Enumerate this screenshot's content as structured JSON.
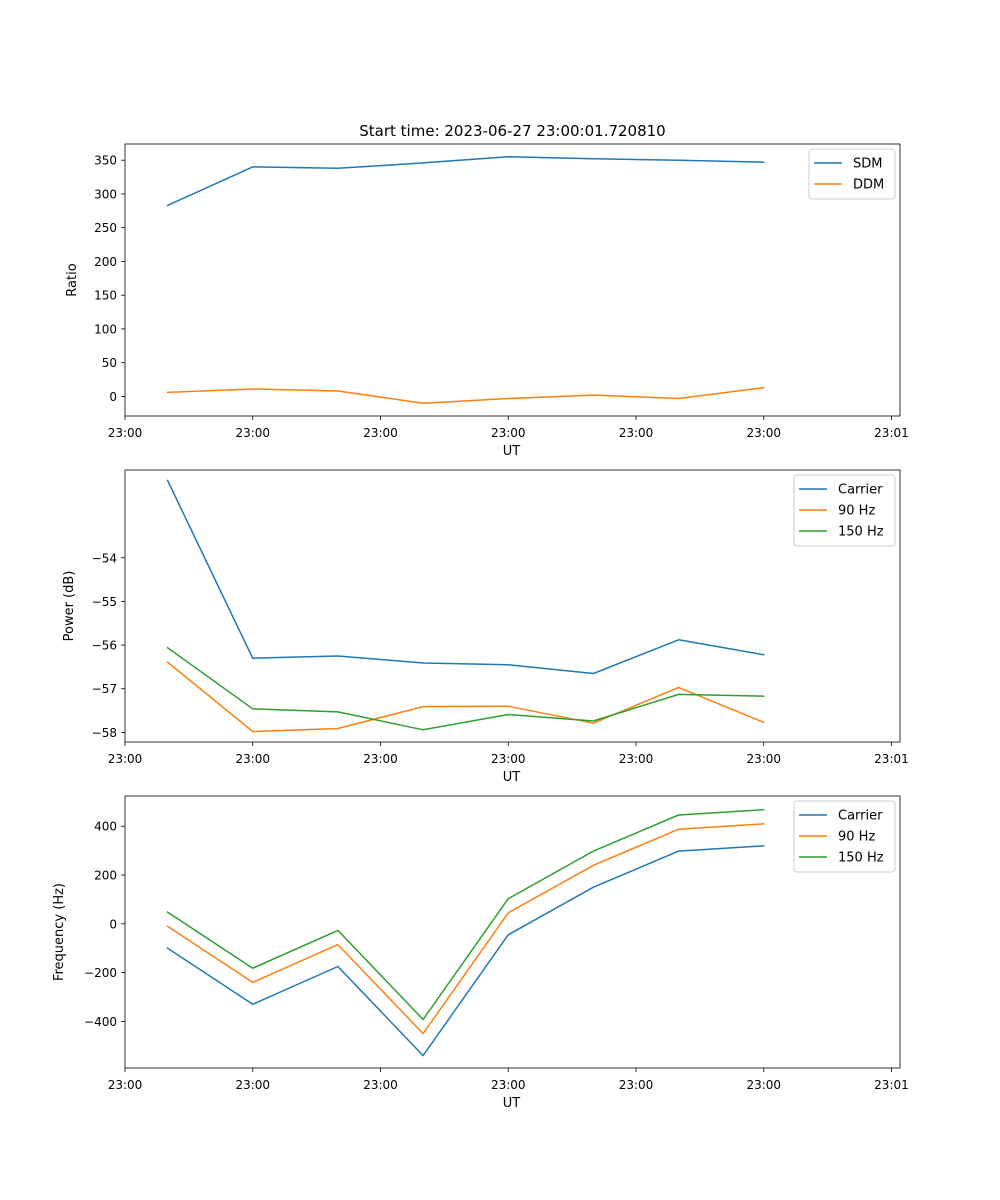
{
  "figure": {
    "title": "Start time: 2023-06-27 23:00:01.720810"
  },
  "colors": {
    "blue": "#1f77b4",
    "orange": "#ff7f0e",
    "green": "#2ca02c"
  },
  "chart_data": [
    {
      "type": "line",
      "title": "Start time: 2023-06-27 23:00:01.720810",
      "xlabel": "UT",
      "ylabel": "Ratio",
      "x": [
        0,
        1,
        2,
        3,
        4,
        5,
        6,
        7
      ],
      "xlim": [
        -0.5,
        8.6
      ],
      "ylim": [
        -29,
        374
      ],
      "xticks": [
        -0.5,
        1.0,
        2.5,
        4.0,
        5.5,
        7.0,
        8.5
      ],
      "xtick_labels": [
        "23:00",
        "23:00",
        "23:00",
        "23:00",
        "23:00",
        "23:00",
        "23:01"
      ],
      "yticks": [
        0,
        50,
        100,
        150,
        200,
        250,
        300,
        350
      ],
      "ytick_labels": [
        "0",
        "50",
        "100",
        "150",
        "200",
        "250",
        "300",
        "350"
      ],
      "legend_position": "top-right",
      "grid": false,
      "series": [
        {
          "name": "SDM",
          "color": "#1f77b4",
          "values": [
            283,
            340,
            338,
            346,
            355,
            352,
            350,
            347
          ]
        },
        {
          "name": "DDM",
          "color": "#ff7f0e",
          "values": [
            6,
            11,
            8,
            -10,
            -3,
            2,
            -3,
            13
          ]
        }
      ]
    },
    {
      "type": "line",
      "title": "",
      "xlabel": "UT",
      "ylabel": "Power (dB)",
      "x": [
        0,
        1,
        2,
        3,
        4,
        5,
        6,
        7
      ],
      "xlim": [
        -0.5,
        8.6
      ],
      "ylim": [
        -58.22,
        -51.99
      ],
      "xticks": [
        -0.5,
        1.0,
        2.5,
        4.0,
        5.5,
        7.0,
        8.5
      ],
      "xtick_labels": [
        "23:00",
        "23:00",
        "23:00",
        "23:00",
        "23:00",
        "23:00",
        "23:01"
      ],
      "yticks": [
        -58,
        -57,
        -56,
        -55,
        -54
      ],
      "ytick_labels": [
        "−58",
        "−57",
        "−56",
        "−55",
        "−54"
      ],
      "legend_position": "top-right",
      "grid": false,
      "series": [
        {
          "name": "Carrier",
          "color": "#1f77b4",
          "values": [
            -52.23,
            -56.3,
            -56.25,
            -56.41,
            -56.45,
            -56.65,
            -55.88,
            -56.22
          ]
        },
        {
          "name": "90 Hz",
          "color": "#ff7f0e",
          "values": [
            -56.39,
            -57.98,
            -57.91,
            -57.41,
            -57.4,
            -57.79,
            -56.97,
            -57.77
          ]
        },
        {
          "name": "150 Hz",
          "color": "#2ca02c",
          "values": [
            -56.06,
            -57.46,
            -57.53,
            -57.94,
            -57.59,
            -57.74,
            -57.13,
            -57.17
          ]
        }
      ]
    },
    {
      "type": "line",
      "title": "",
      "xlabel": "UT",
      "ylabel": "Frequency (Hz)",
      "x": [
        0,
        1,
        2,
        3,
        4,
        5,
        6,
        7
      ],
      "xlim": [
        -0.5,
        8.6
      ],
      "ylim": [
        -591,
        524
      ],
      "xticks": [
        -0.5,
        1.0,
        2.5,
        4.0,
        5.5,
        7.0,
        8.5
      ],
      "xtick_labels": [
        "23:00",
        "23:00",
        "23:00",
        "23:00",
        "23:00",
        "23:00",
        "23:01"
      ],
      "yticks": [
        -400,
        -200,
        0,
        200,
        400
      ],
      "ytick_labels": [
        "−400",
        "−200",
        "0",
        "200",
        "400"
      ],
      "legend_position": "top-right",
      "grid": false,
      "series": [
        {
          "name": "Carrier",
          "color": "#1f77b4",
          "values": [
            -100,
            -330,
            -175,
            -540,
            -45,
            150,
            298,
            320
          ]
        },
        {
          "name": "90 Hz",
          "color": "#ff7f0e",
          "values": [
            -10,
            -240,
            -85,
            -450,
            45,
            240,
            388,
            410
          ]
        },
        {
          "name": "150 Hz",
          "color": "#2ca02c",
          "values": [
            48,
            -182,
            -27,
            -392,
            103,
            298,
            446,
            468
          ]
        }
      ]
    }
  ]
}
